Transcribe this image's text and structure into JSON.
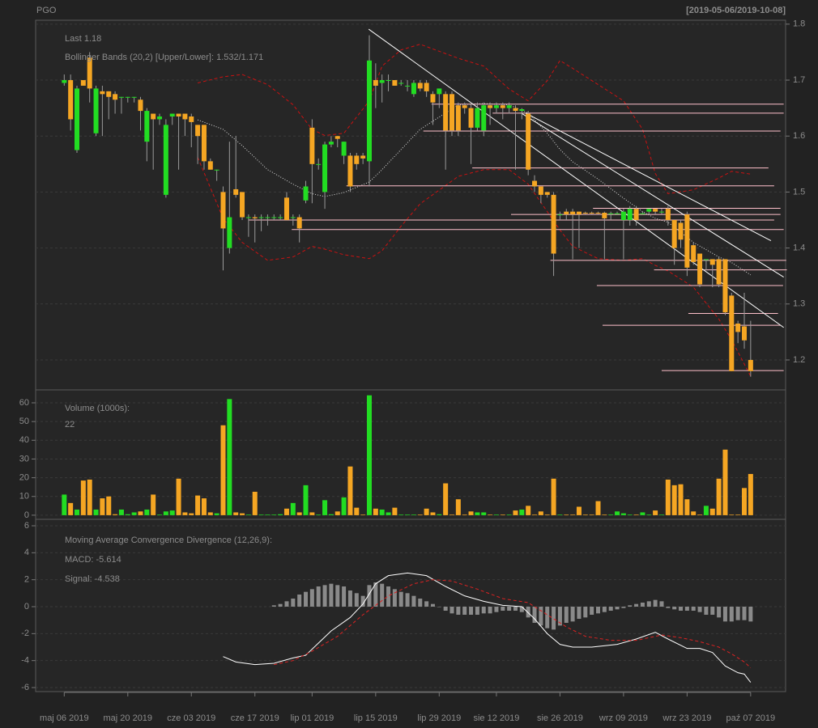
{
  "chart_data": [
    {
      "type": "candlestick",
      "title": "PGO",
      "subtitle": "[2019-05-06/2019-10-08]",
      "xlim": [
        -4.5,
        113.5
      ],
      "ylim": [
        1.1465,
        1.807
      ],
      "yticks": [
        1.2,
        1.3,
        1.4,
        1.5,
        1.6,
        1.7,
        1.8
      ],
      "grid": true,
      "up_color": "#22dd22",
      "down_color": "#f5a623",
      "wick_color": "#999999",
      "open": [
        1.695,
        1.7,
        1.575,
        1.7,
        1.74,
        1.605,
        1.68,
        1.68,
        1.675,
        1.67,
        1.67,
        1.67,
        1.665,
        1.59,
        1.64,
        1.63,
        1.495,
        1.635,
        1.64,
        1.64,
        1.635,
        1.62,
        1.62,
        1.555,
        1.54,
        1.5,
        1.4,
        1.505,
        1.5,
        1.455,
        1.455,
        1.455,
        1.455,
        1.455,
        1.455,
        1.49,
        1.455,
        1.455,
        1.485,
        1.615,
        1.55,
        1.5,
        1.585,
        1.6,
        1.565,
        1.565,
        1.565,
        1.565,
        1.555,
        1.7,
        1.695,
        1.7,
        1.7,
        1.695,
        1.69,
        1.675,
        1.695,
        1.695,
        1.675,
        1.675,
        1.675,
        1.675,
        1.655,
        1.655,
        1.65,
        1.615,
        1.61,
        1.655,
        1.65,
        1.655,
        1.65,
        1.65,
        1.645,
        1.64,
        1.52,
        1.51,
        1.5,
        1.495,
        1.46,
        1.465,
        1.465,
        1.465,
        1.463,
        1.463,
        1.463,
        1.463,
        1.462,
        1.462,
        1.45,
        1.45,
        1.47,
        1.462,
        1.465,
        1.47,
        1.465,
        1.47,
        1.45,
        1.445,
        1.46,
        1.405,
        1.39,
        1.38,
        1.38,
        1.38,
        1.38,
        1.315,
        1.265,
        1.26,
        1.2
      ],
      "high": [
        1.71,
        1.71,
        1.69,
        1.7,
        1.75,
        1.69,
        1.69,
        1.68,
        1.68,
        1.67,
        1.67,
        1.67,
        1.67,
        1.65,
        1.64,
        1.64,
        1.63,
        1.64,
        1.64,
        1.64,
        1.64,
        1.62,
        1.62,
        1.56,
        1.54,
        1.51,
        1.59,
        1.6,
        1.5,
        1.46,
        1.46,
        1.46,
        1.46,
        1.46,
        1.46,
        1.5,
        1.46,
        1.46,
        1.52,
        1.63,
        1.56,
        1.59,
        1.6,
        1.6,
        1.59,
        1.57,
        1.57,
        1.57,
        1.78,
        1.73,
        1.71,
        1.71,
        1.7,
        1.7,
        1.7,
        1.7,
        1.7,
        1.7,
        1.68,
        1.68,
        1.68,
        1.68,
        1.66,
        1.66,
        1.66,
        1.66,
        1.66,
        1.66,
        1.66,
        1.66,
        1.66,
        1.655,
        1.65,
        1.645,
        1.53,
        1.51,
        1.5,
        1.5,
        1.465,
        1.47,
        1.47,
        1.465,
        1.465,
        1.465,
        1.465,
        1.465,
        1.465,
        1.465,
        1.47,
        1.475,
        1.475,
        1.465,
        1.47,
        1.47,
        1.47,
        1.475,
        1.45,
        1.45,
        1.465,
        1.41,
        1.39,
        1.38,
        1.38,
        1.385,
        1.38,
        1.32,
        1.27,
        1.32,
        1.27
      ],
      "low": [
        1.69,
        1.61,
        1.57,
        1.69,
        1.66,
        1.6,
        1.6,
        1.63,
        1.64,
        1.64,
        1.66,
        1.66,
        1.61,
        1.555,
        1.54,
        1.62,
        1.49,
        1.62,
        1.54,
        1.6,
        1.58,
        1.55,
        1.54,
        1.54,
        1.52,
        1.36,
        1.39,
        1.49,
        1.45,
        1.42,
        1.41,
        1.43,
        1.44,
        1.45,
        1.45,
        1.45,
        1.44,
        1.41,
        1.48,
        1.48,
        1.54,
        1.47,
        1.58,
        1.58,
        1.55,
        1.5,
        1.54,
        1.55,
        1.51,
        1.65,
        1.66,
        1.68,
        1.69,
        1.69,
        1.68,
        1.67,
        1.68,
        1.67,
        1.62,
        1.65,
        1.54,
        1.6,
        1.6,
        1.64,
        1.55,
        1.61,
        1.6,
        1.62,
        1.64,
        1.63,
        1.64,
        1.54,
        1.63,
        1.53,
        1.5,
        1.48,
        1.49,
        1.35,
        1.45,
        1.45,
        1.38,
        1.4,
        1.46,
        1.46,
        1.46,
        1.38,
        1.45,
        1.46,
        1.38,
        1.44,
        1.44,
        1.46,
        1.46,
        1.46,
        1.46,
        1.44,
        1.37,
        1.4,
        1.35,
        1.37,
        1.33,
        1.36,
        1.33,
        1.33,
        1.28,
        1.18,
        1.23,
        1.22,
        1.17
      ],
      "close": [
        1.7,
        1.63,
        1.685,
        1.69,
        1.685,
        1.685,
        1.675,
        1.67,
        1.665,
        1.67,
        1.67,
        1.67,
        1.645,
        1.645,
        1.63,
        1.635,
        1.62,
        1.64,
        1.635,
        1.63,
        1.625,
        1.6,
        1.555,
        1.54,
        1.54,
        1.435,
        1.455,
        1.495,
        1.455,
        1.455,
        1.453,
        1.455,
        1.455,
        1.455,
        1.455,
        1.45,
        1.455,
        1.435,
        1.51,
        1.55,
        1.55,
        1.585,
        1.59,
        1.595,
        1.59,
        1.51,
        1.55,
        1.56,
        1.735,
        1.69,
        1.7,
        1.7,
        1.69,
        1.695,
        1.69,
        1.695,
        1.685,
        1.68,
        1.66,
        1.685,
        1.61,
        1.61,
        1.61,
        1.65,
        1.615,
        1.65,
        1.655,
        1.65,
        1.655,
        1.65,
        1.655,
        1.645,
        1.648,
        1.54,
        1.51,
        1.495,
        1.495,
        1.39,
        1.46,
        1.46,
        1.46,
        1.46,
        1.462,
        1.462,
        1.462,
        1.453,
        1.462,
        1.462,
        1.465,
        1.47,
        1.45,
        1.462,
        1.47,
        1.465,
        1.465,
        1.45,
        1.4,
        1.415,
        1.365,
        1.375,
        1.335,
        1.38,
        1.37,
        1.335,
        1.285,
        1.18,
        1.25,
        1.235,
        1.18
      ],
      "bands": [
        {
          "color": "#cc1111",
          "style": "dashed",
          "x": [
            21,
            25,
            28,
            32,
            36,
            39,
            41,
            44,
            48,
            50,
            53,
            56,
            62,
            66,
            70,
            73,
            76,
            78,
            80,
            84,
            88,
            91,
            93,
            95,
            99,
            103,
            105,
            108
          ],
          "values": [
            1.695,
            1.706,
            1.71,
            1.692,
            1.656,
            1.612,
            1.601,
            1.605,
            1.663,
            1.725,
            1.754,
            1.764,
            1.739,
            1.725,
            1.684,
            1.663,
            1.699,
            1.735,
            1.721,
            1.692,
            1.663,
            1.612,
            1.533,
            1.497,
            1.504,
            1.525,
            1.537,
            1.532
          ]
        },
        {
          "color": "#cc1111",
          "style": "dashed",
          "x": [
            21,
            25,
            28,
            32,
            36,
            39,
            41,
            44,
            48,
            50,
            53,
            56,
            62,
            66,
            70,
            73,
            76,
            78,
            80,
            84,
            88,
            91,
            93,
            95,
            99,
            103,
            105,
            108
          ],
          "values": [
            1.562,
            1.453,
            1.41,
            1.378,
            1.384,
            1.403,
            1.398,
            1.388,
            1.381,
            1.395,
            1.439,
            1.479,
            1.528,
            1.54,
            1.54,
            1.514,
            1.465,
            1.432,
            1.403,
            1.381,
            1.378,
            1.381,
            1.369,
            1.359,
            1.33,
            1.273,
            1.236,
            1.171
          ]
        },
        {
          "color": "#dddddd",
          "style": "dotted",
          "x": [
            21,
            25,
            28,
            32,
            36,
            39,
            41,
            44,
            48,
            50,
            53,
            56,
            62,
            66,
            70,
            73,
            76,
            78,
            80,
            84,
            88,
            91,
            93,
            95,
            99,
            103,
            105,
            108
          ],
          "values": [
            1.629,
            1.612,
            1.583,
            1.54,
            1.514,
            1.497,
            1.492,
            1.499,
            1.518,
            1.54,
            1.576,
            1.612,
            1.656,
            1.658,
            1.656,
            1.641,
            1.605,
            1.576,
            1.554,
            1.523,
            1.489,
            1.465,
            1.453,
            1.446,
            1.41,
            1.384,
            1.374,
            1.352
          ]
        }
      ],
      "levels_color": "#ffc0cb",
      "levels": [
        {
          "y": 1.657,
          "x": [
            57.8,
            113.2
          ]
        },
        {
          "y": 1.641,
          "x": [
            67.4,
            113.2
          ]
        },
        {
          "y": 1.609,
          "x": [
            56.5,
            112.7
          ]
        },
        {
          "y": 1.543,
          "x": [
            64.2,
            110.8
          ]
        },
        {
          "y": 1.511,
          "x": [
            44.4,
            111.7
          ]
        },
        {
          "y": 1.471,
          "x": [
            83.2,
            112.7
          ]
        },
        {
          "y": 1.46,
          "x": [
            70.3,
            112.7
          ]
        },
        {
          "y": 1.45,
          "x": [
            29,
            111.7
          ]
        },
        {
          "y": 1.433,
          "x": [
            35.8,
            113.2
          ]
        },
        {
          "y": 1.378,
          "x": [
            76.5,
            113.6
          ]
        },
        {
          "y": 1.361,
          "x": [
            92.8,
            113.7
          ]
        },
        {
          "y": 1.333,
          "x": [
            83.8,
            113.1
          ]
        },
        {
          "y": 1.283,
          "x": [
            98.2,
            112.3
          ]
        },
        {
          "y": 1.262,
          "x": [
            84.7,
            112.7
          ]
        },
        {
          "y": 1.181,
          "x": [
            94,
            113.2
          ]
        }
      ],
      "trend_color": "#ffffff",
      "trendlines": [
        {
          "x": [
            47.9,
            113.2
          ],
          "y": [
            1.791,
            1.258
          ]
        },
        {
          "x": [
            71.9,
            113.2
          ],
          "y": [
            1.641,
            1.348
          ]
        },
        {
          "x": [
            72.6,
            111.2
          ],
          "y": [
            1.641,
            1.413
          ]
        }
      ],
      "annotations": [
        {
          "text": "Last 1.18",
          "color": "#f5a623"
        },
        {
          "text": "Bollinger Bands (20,2) [Upper/Lower]: 1.532/1.171",
          "color": "#ee1111"
        }
      ]
    },
    {
      "type": "volume",
      "title": "Volume (1000s):",
      "xlim": [
        -4.5,
        113.5
      ],
      "ylim": [
        -2.2,
        66.9
      ],
      "yticks": [
        0,
        10,
        20,
        30,
        40,
        50,
        60
      ],
      "grid": true,
      "values": [
        11,
        6.5,
        3,
        18.5,
        19,
        3,
        9,
        10,
        0.5,
        3,
        0.5,
        1.5,
        2,
        3,
        11,
        0.3,
        2,
        2.5,
        19.5,
        1.5,
        1,
        10.5,
        9,
        1.5,
        1,
        48,
        62,
        1.5,
        1,
        0.3,
        12.5,
        0.3,
        0.3,
        0.3,
        0.5,
        3.5,
        6.5,
        1.5,
        16,
        1.5,
        0.3,
        8,
        0.5,
        2,
        9.5,
        26,
        4,
        0.3,
        64,
        3.5,
        3,
        1.5,
        4,
        0.3,
        0.3,
        0.3,
        0.3,
        3.5,
        1.5,
        0.5,
        17,
        0.3,
        8.5,
        0.3,
        2,
        1.5,
        1.5,
        0.3,
        0.3,
        0.3,
        0.3,
        2.5,
        3,
        5,
        0.3,
        2,
        0.3,
        19.5,
        0.3,
        0.3,
        0.3,
        4.5,
        0.3,
        0.3,
        7.5,
        0.3,
        0.3,
        2,
        1,
        0.3,
        0.3,
        1.5,
        0.3,
        2.5,
        0.3,
        19,
        16,
        16.5,
        8.5,
        2,
        0.3,
        5,
        3.5,
        19.5,
        35,
        0.3,
        0.3,
        14.5,
        22
      ]
    },
    {
      "type": "macd",
      "title": "Moving Average Convergence Divergence (12,26,9):",
      "xlim": [
        -4.5,
        113.5
      ],
      "ylim": [
        -6.3,
        6.48
      ],
      "yticks": [
        -6,
        -4,
        -2,
        0,
        2,
        4,
        6
      ],
      "grid": true,
      "xticks": [
        {
          "value": 0,
          "label": "maj 06 2019"
        },
        {
          "value": 10,
          "label": "maj 20 2019"
        },
        {
          "value": 20,
          "label": "cze 03 2019"
        },
        {
          "value": 30,
          "label": "cze 17 2019"
        },
        {
          "value": 39,
          "label": "lip 01 2019"
        },
        {
          "value": 49,
          "label": "lip 15 2019"
        },
        {
          "value": 59,
          "label": "lip 29 2019"
        },
        {
          "value": 68,
          "label": "sie 12 2019"
        },
        {
          "value": 78,
          "label": "sie 26 2019"
        },
        {
          "value": 88,
          "label": "wrz 09 2019"
        },
        {
          "value": 98,
          "label": "wrz 23 2019"
        },
        {
          "value": 108,
          "label": "paź 07 2019"
        }
      ],
      "histogram": {
        "color": "#8a8a8a",
        "values": [
          null,
          null,
          null,
          null,
          null,
          null,
          null,
          null,
          null,
          null,
          null,
          null,
          null,
          null,
          null,
          null,
          null,
          null,
          null,
          null,
          null,
          null,
          null,
          null,
          null,
          null,
          null,
          null,
          null,
          null,
          null,
          null,
          null,
          0.1,
          0.2,
          0.4,
          0.6,
          0.9,
          1.1,
          1.3,
          1.5,
          1.6,
          1.7,
          1.6,
          1.5,
          1.2,
          1.0,
          0.8,
          1.6,
          1.8,
          1.7,
          1.5,
          1.3,
          1.1,
          1.0,
          0.8,
          0.6,
          0.4,
          0.2,
          0,
          -0.3,
          -0.5,
          -0.6,
          -0.6,
          -0.6,
          -0.6,
          -0.5,
          -0.5,
          -0.4,
          -0.3,
          -0.3,
          -0.3,
          -0.4,
          -0.8,
          -1.2,
          -1.4,
          -1.6,
          -1.7,
          -1.4,
          -1.2,
          -1.1,
          -0.9,
          -0.8,
          -0.6,
          -0.5,
          -0.4,
          -0.3,
          -0.2,
          -0.1,
          0.1,
          0.2,
          0.3,
          0.4,
          0.5,
          0.4,
          -0.1,
          -0.2,
          -0.3,
          -0.3,
          -0.3,
          -0.4,
          -0.6,
          -0.6,
          -0.8,
          -1.1,
          -1.1,
          -1.0,
          -1.0,
          -1.1
        ]
      },
      "lines": [
        {
          "color": "#ffffff",
          "style": "solid",
          "x": [
            25,
            27,
            30,
            33,
            36,
            38,
            40,
            42,
            45,
            47,
            49,
            51,
            54,
            57,
            60,
            63,
            66,
            69,
            72,
            74,
            76,
            78,
            80,
            83,
            87,
            90,
            93,
            95,
            98,
            100,
            102,
            104,
            106,
            107,
            108
          ],
          "values": [
            -3.7,
            -4.1,
            -4.3,
            -4.2,
            -3.8,
            -3.6,
            -2.7,
            -1.8,
            -0.8,
            0.2,
            1.7,
            2.3,
            2.5,
            2.3,
            1.5,
            0.8,
            0.4,
            0.1,
            0,
            -0.9,
            -2,
            -2.8,
            -3.0,
            -3.0,
            -2.8,
            -2.4,
            -1.9,
            -2.4,
            -3.1,
            -3.1,
            -3.4,
            -4.4,
            -4.9,
            -5.0,
            -5.614
          ]
        },
        {
          "color": "#dd2222",
          "style": "dashed",
          "x": [
            33,
            36,
            39,
            43,
            47,
            51,
            55,
            58,
            61,
            65,
            69,
            73,
            76,
            79,
            82,
            86,
            90,
            94,
            97,
            100,
            103,
            105,
            107,
            108
          ],
          "values": [
            -4.3,
            -4.0,
            -3.3,
            -2.2,
            -0.6,
            0.8,
            1.7,
            2.0,
            1.9,
            1.3,
            0.6,
            0.3,
            -0.6,
            -1.5,
            -2.2,
            -2.5,
            -2.5,
            -2.1,
            -2.3,
            -2.6,
            -3.0,
            -3.5,
            -4.1,
            -4.538
          ]
        }
      ],
      "annotations": [
        {
          "text": "MACD: -5.614",
          "color": "#ffffff"
        },
        {
          "text": "Signal: -4.538",
          "color": "#ee1111"
        }
      ]
    }
  ]
}
